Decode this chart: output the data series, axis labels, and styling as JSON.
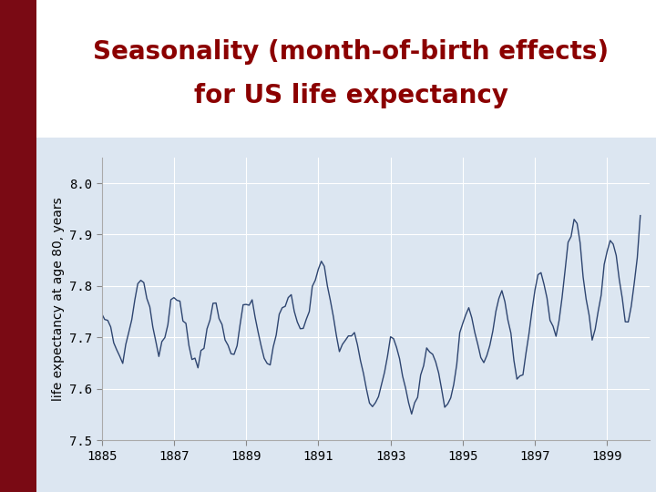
{
  "title_line1": "Seasonality (month-of-birth effects)",
  "title_line2": "for US life expectancy",
  "title_color": "#8B0000",
  "title_fontsize": 20,
  "ylabel": "life expectancy at age 80, years",
  "ylabel_fontsize": 10,
  "xlim": [
    1885.0,
    1900.17
  ],
  "ylim": [
    7.5,
    8.05
  ],
  "yticks": [
    7.5,
    7.6,
    7.7,
    7.8,
    7.9,
    8.0
  ],
  "xticks": [
    1885,
    1887,
    1889,
    1891,
    1893,
    1895,
    1897,
    1899
  ],
  "line_color": "#2e4570",
  "line_width": 1.0,
  "plot_bg_color": "#dce6f1",
  "outer_bg_color": "#ffffff",
  "left_bar_color": "#7a0a14",
  "grid_color": "#ffffff",
  "grid_linewidth": 0.8
}
